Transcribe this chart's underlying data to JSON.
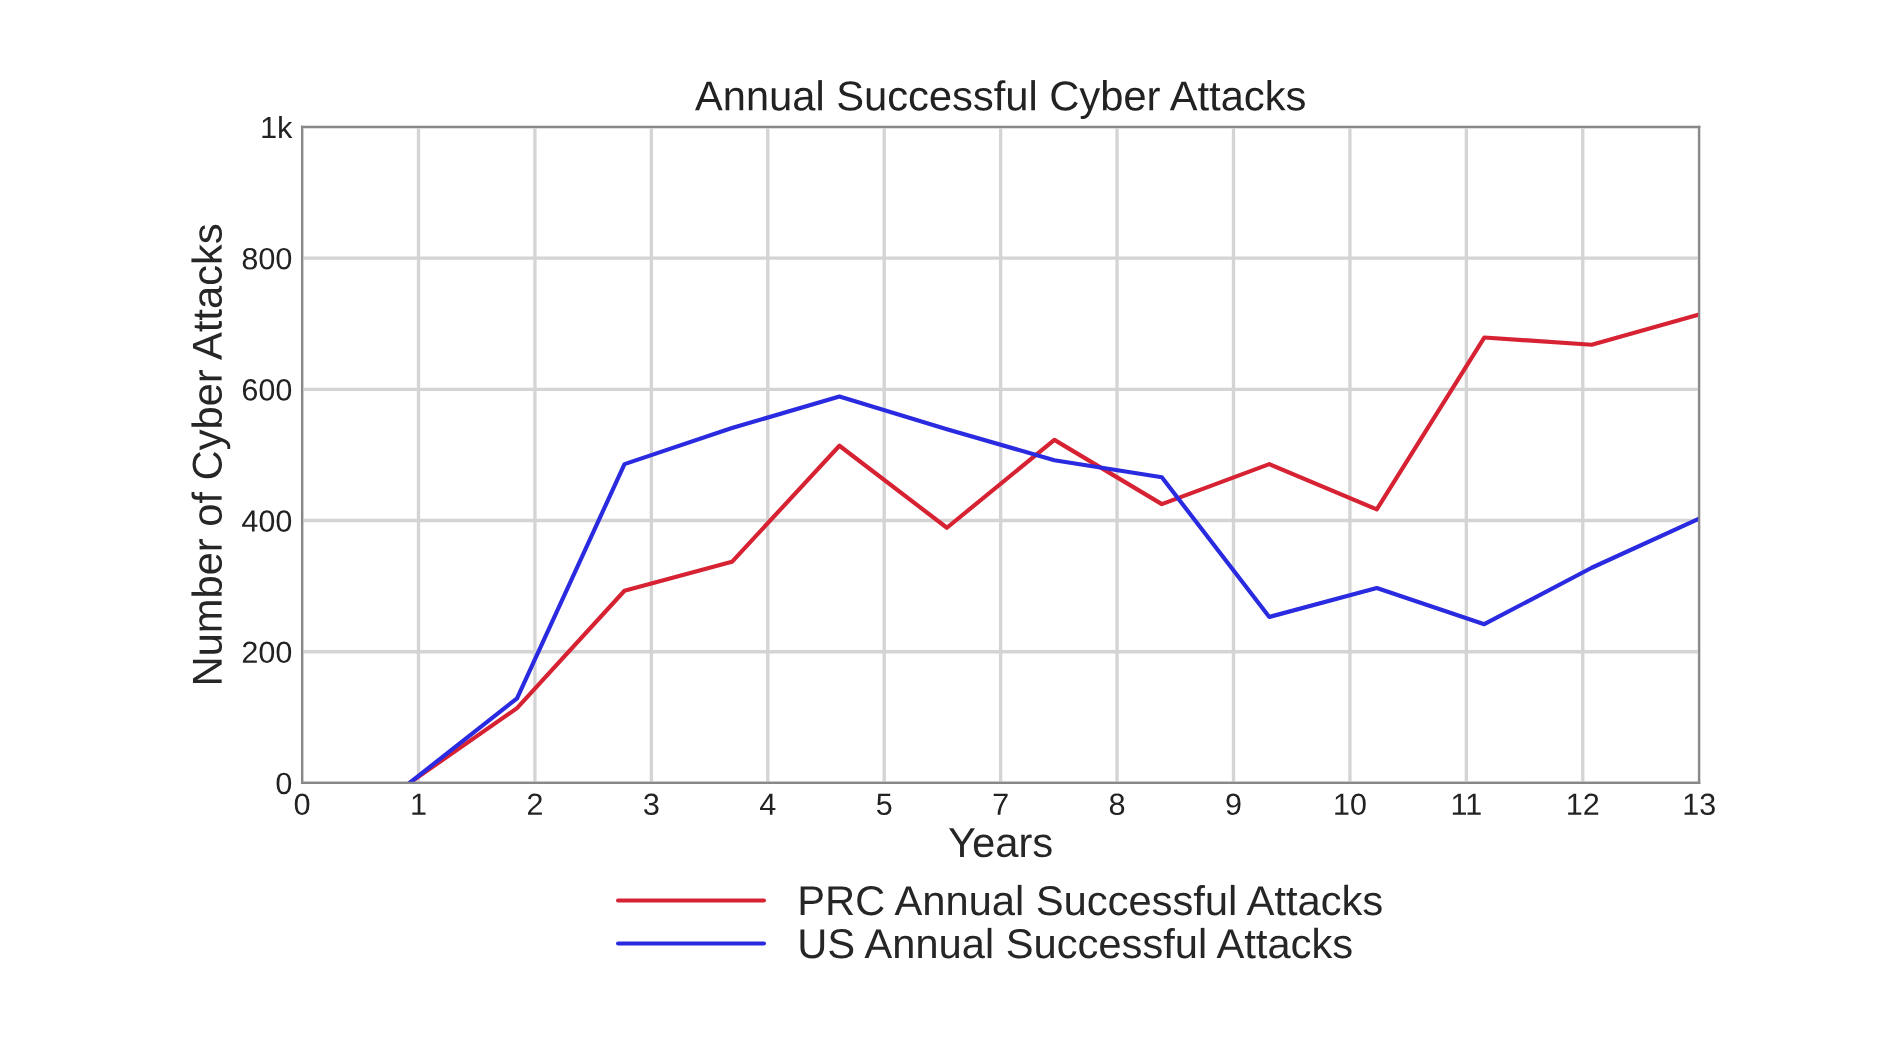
{
  "chart_data": {
    "type": "line",
    "title": "Annual Successful Cyber Attacks",
    "xlabel": "Years",
    "ylabel": "Number of Cyber Attacks",
    "x": [
      1,
      2,
      3,
      4,
      5,
      6,
      7,
      8,
      9,
      10,
      11,
      12,
      13
    ],
    "series": [
      {
        "name": "PRC Annual Successful Attacks",
        "color": "#d62232",
        "values": [
          0,
          114,
          293,
          337,
          514,
          389,
          523,
          425,
          486,
          417,
          679,
          668,
          714
        ]
      },
      {
        "name": "US Annual Successful Attacks",
        "color": "#2a2ae0",
        "values": [
          0,
          129,
          486,
          541,
          589,
          539,
          492,
          466,
          253,
          297,
          242,
          328,
          403
        ]
      }
    ],
    "xlim": [
      0,
      13
    ],
    "xticks": [
      {
        "value": 0,
        "label": "0"
      },
      {
        "value": 1.0833,
        "label": "1"
      },
      {
        "value": 2.1667,
        "label": "2"
      },
      {
        "value": 3.25,
        "label": "3"
      },
      {
        "value": 4.3333,
        "label": "4"
      },
      {
        "value": 5.4167,
        "label": "5"
      },
      {
        "value": 6.5,
        "label": "7"
      },
      {
        "value": 7.5833,
        "label": "8"
      },
      {
        "value": 8.6667,
        "label": "9"
      },
      {
        "value": 9.75,
        "label": "10"
      },
      {
        "value": 10.8333,
        "label": "11"
      },
      {
        "value": 11.9167,
        "label": "12"
      },
      {
        "value": 13,
        "label": "13"
      }
    ],
    "ylim": [
      0,
      1000
    ],
    "yticks": [
      0,
      200,
      400,
      600,
      800,
      {
        "value": 1000,
        "label": "1k"
      }
    ],
    "grid": true,
    "legend": "bottom",
    "marker": "none",
    "line_style": "solid"
  }
}
